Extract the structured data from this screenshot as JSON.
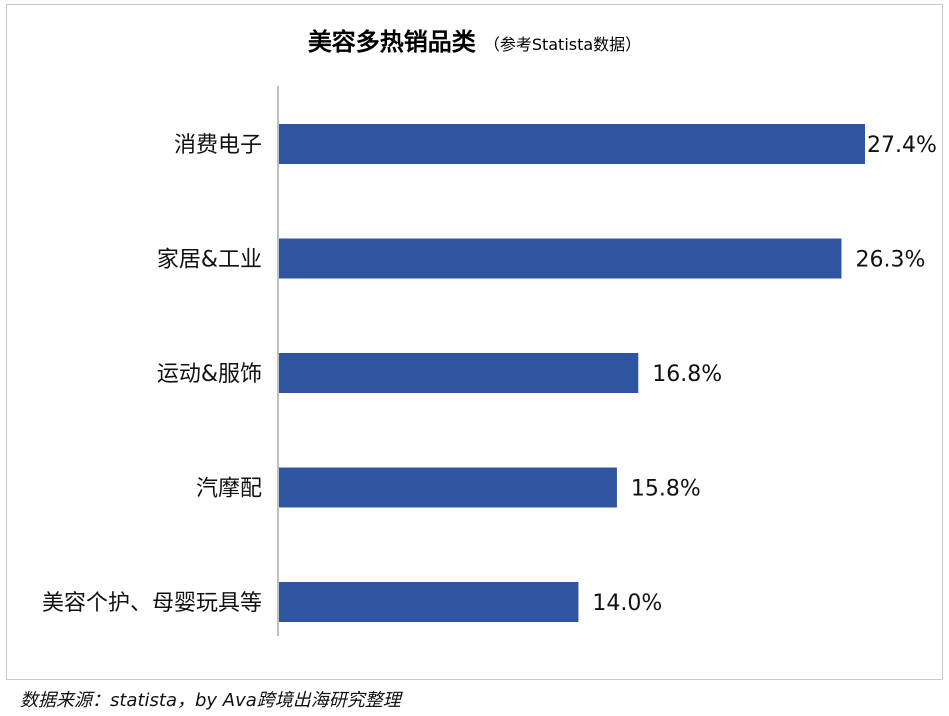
{
  "title": "美容多热销品类",
  "subtitle": "（参考Statista数据）",
  "source": "数据来源：statista，by Ava跨境出海研究整理",
  "colors": {
    "bar": "#2F54A0",
    "axis": "#bfbfbf"
  },
  "chart_data": {
    "type": "bar",
    "orientation": "horizontal",
    "title": "美容多热销品类",
    "categories": [
      "消费电子",
      "家居&工业",
      "运动&服饰",
      "汽摩配",
      "美容个护、母婴玩具等"
    ],
    "values": [
      27.4,
      26.3,
      16.8,
      15.8,
      14.0
    ],
    "value_labels": [
      "27.4%",
      "26.3%",
      "16.8%",
      "15.8%",
      "14.0%"
    ],
    "unit": "%",
    "xlim": [
      0,
      27.4
    ],
    "grid": false,
    "legend": "none"
  }
}
